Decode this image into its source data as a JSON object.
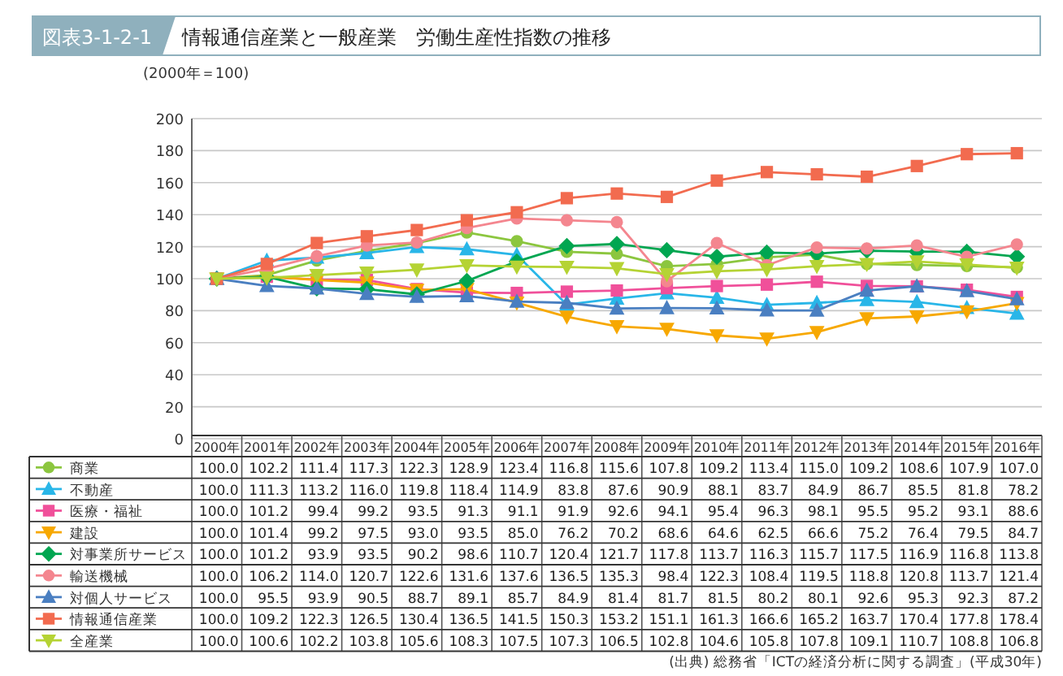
{
  "chart_data": {
    "type": "line",
    "title": "情報通信産業と一般産業　労働生産性指数の推移",
    "ylabel": "(2000年＝100)",
    "annotations": [
      "図表3-1-2-1",
      "(出典) 総務省「ICTの経済分析に関する調査」(平成30年)"
    ],
    "categories": [
      "2000年",
      "2001年",
      "2002年",
      "2003年",
      "2004年",
      "2005年",
      "2006年",
      "2007年",
      "2008年",
      "2009年",
      "2010年",
      "2011年",
      "2012年",
      "2013年",
      "2014年",
      "2015年",
      "2016年"
    ],
    "ylim": [
      0,
      200
    ],
    "yticks": [
      0,
      20,
      40,
      60,
      80,
      100,
      120,
      140,
      160,
      180,
      200
    ],
    "grid": "y",
    "legend": "bottom",
    "series": [
      {
        "name": "商業",
        "color": "#8cc63f",
        "marker": "circle",
        "values": [
          100.0,
          102.2,
          111.4,
          117.3,
          122.3,
          128.9,
          123.4,
          116.8,
          115.6,
          107.8,
          109.2,
          113.4,
          115.0,
          109.2,
          108.6,
          107.9,
          107.0
        ],
        "value_labels": [
          "100.0",
          "102.2",
          "111.4",
          "117.3",
          "122.3",
          "128.9",
          "123.4",
          "116.8",
          "115.6",
          "107.8",
          "109.2",
          "113.4",
          "115.0",
          "109.2",
          "108.6",
          "107.9",
          "107.0"
        ]
      },
      {
        "name": "不動産",
        "color": "#29b6e8",
        "marker": "triangle",
        "values": [
          100.0,
          111.3,
          113.2,
          116.0,
          119.8,
          118.4,
          114.9,
          83.8,
          87.6,
          90.9,
          88.1,
          83.7,
          84.9,
          86.7,
          85.5,
          81.8,
          78.2
        ],
        "value_labels": [
          "100.0",
          "111.3",
          "113.2",
          "116.0",
          "119.8",
          "118.4",
          "114.9",
          "83.8",
          "87.6",
          "90.9",
          "88.1",
          "83.7",
          "84.9",
          "86.7",
          "85.5",
          "81.8",
          "78.2"
        ]
      },
      {
        "name": "医療・福祉",
        "color": "#f0509a",
        "marker": "square",
        "values": [
          100.0,
          101.2,
          99.4,
          99.2,
          93.5,
          91.3,
          91.1,
          91.9,
          92.6,
          94.1,
          95.4,
          96.3,
          98.1,
          95.5,
          95.2,
          93.1,
          88.6
        ],
        "value_labels": [
          "100.0",
          "101.2",
          "99.4",
          "99.2",
          "93.5",
          "91.3",
          "91.1",
          "91.9",
          "92.6",
          "94.1",
          "95.4",
          "96.3",
          "98.1",
          "95.5",
          "95.2",
          "93.1",
          "88.6"
        ]
      },
      {
        "name": "建設",
        "color": "#f7a800",
        "marker": "triangle-down",
        "values": [
          100.0,
          101.4,
          99.2,
          97.5,
          93.0,
          93.5,
          85.0,
          76.2,
          70.2,
          68.6,
          64.6,
          62.5,
          66.6,
          75.2,
          76.4,
          79.5,
          84.7
        ],
        "value_labels": [
          "100.0",
          "101.4",
          "99.2",
          "97.5",
          "93.0",
          "93.5",
          "85.0",
          "76.2",
          "70.2",
          "68.6",
          "64.6",
          "62.5",
          "66.6",
          "75.2",
          "76.4",
          "79.5",
          "84.7"
        ]
      },
      {
        "name": "対事業所サービス",
        "color": "#00a651",
        "marker": "diamond",
        "values": [
          100.0,
          101.2,
          93.9,
          93.5,
          90.2,
          98.6,
          110.7,
          120.4,
          121.7,
          117.8,
          113.7,
          116.3,
          115.7,
          117.5,
          116.9,
          116.8,
          113.8
        ],
        "value_labels": [
          "100.0",
          "101.2",
          "93.9",
          "93.5",
          "90.2",
          "98.6",
          "110.7",
          "120.4",
          "121.7",
          "117.8",
          "113.7",
          "116.3",
          "115.7",
          "117.5",
          "116.9",
          "116.8",
          "113.8"
        ]
      },
      {
        "name": "輸送機械",
        "color": "#f4868f",
        "marker": "circle",
        "values": [
          100.0,
          106.2,
          114.0,
          120.7,
          122.6,
          131.6,
          137.6,
          136.5,
          135.3,
          98.4,
          122.3,
          108.4,
          119.5,
          118.8,
          120.8,
          113.7,
          121.4
        ],
        "value_labels": [
          "100.0",
          "106.2",
          "114.0",
          "120.7",
          "122.6",
          "131.6",
          "137.6",
          "136.5",
          "135.3",
          "98.4",
          "122.3",
          "108.4",
          "119.5",
          "118.8",
          "120.8",
          "113.7",
          "121.4"
        ]
      },
      {
        "name": "対個人サービス",
        "color": "#4a7fc1",
        "marker": "triangle",
        "values": [
          100.0,
          95.5,
          93.9,
          90.5,
          88.7,
          89.1,
          85.7,
          84.9,
          81.4,
          81.7,
          81.5,
          80.2,
          80.1,
          92.6,
          95.3,
          92.3,
          87.2
        ],
        "value_labels": [
          "100.0",
          "95.5",
          "93.9",
          "90.5",
          "88.7",
          "89.1",
          "85.7",
          "84.9",
          "81.4",
          "81.7",
          "81.5",
          "80.2",
          "80.1",
          "92.6",
          "95.3",
          "92.3",
          "87.2"
        ]
      },
      {
        "name": "情報通信産業",
        "color": "#f26b4f",
        "marker": "square",
        "values": [
          100.0,
          109.2,
          122.3,
          126.5,
          130.4,
          136.5,
          141.5,
          150.3,
          153.2,
          151.1,
          161.3,
          166.6,
          165.2,
          163.7,
          170.4,
          177.8,
          178.4
        ],
        "value_labels": [
          "100.0",
          "109.2",
          "122.3",
          "126.5",
          "130.4",
          "136.5",
          "141.5",
          "150.3",
          "153.2",
          "151.1",
          "161.3",
          "166.6",
          "165.2",
          "163.7",
          "170.4",
          "177.8",
          "178.4"
        ]
      },
      {
        "name": "全産業",
        "color": "#b5d334",
        "marker": "triangle-down",
        "values": [
          100.0,
          100.6,
          102.2,
          103.8,
          105.6,
          108.3,
          107.5,
          107.3,
          106.5,
          102.8,
          104.6,
          105.8,
          107.8,
          109.1,
          110.7,
          108.8,
          106.8
        ],
        "value_labels": [
          "100.0",
          "100.6",
          "102.2",
          "103.8",
          "105.6",
          "108.3",
          "107.5",
          "107.3",
          "106.5",
          "102.8",
          "104.6",
          "105.8",
          "107.8",
          "109.1",
          "110.7",
          "108.8",
          "106.8"
        ]
      }
    ]
  }
}
